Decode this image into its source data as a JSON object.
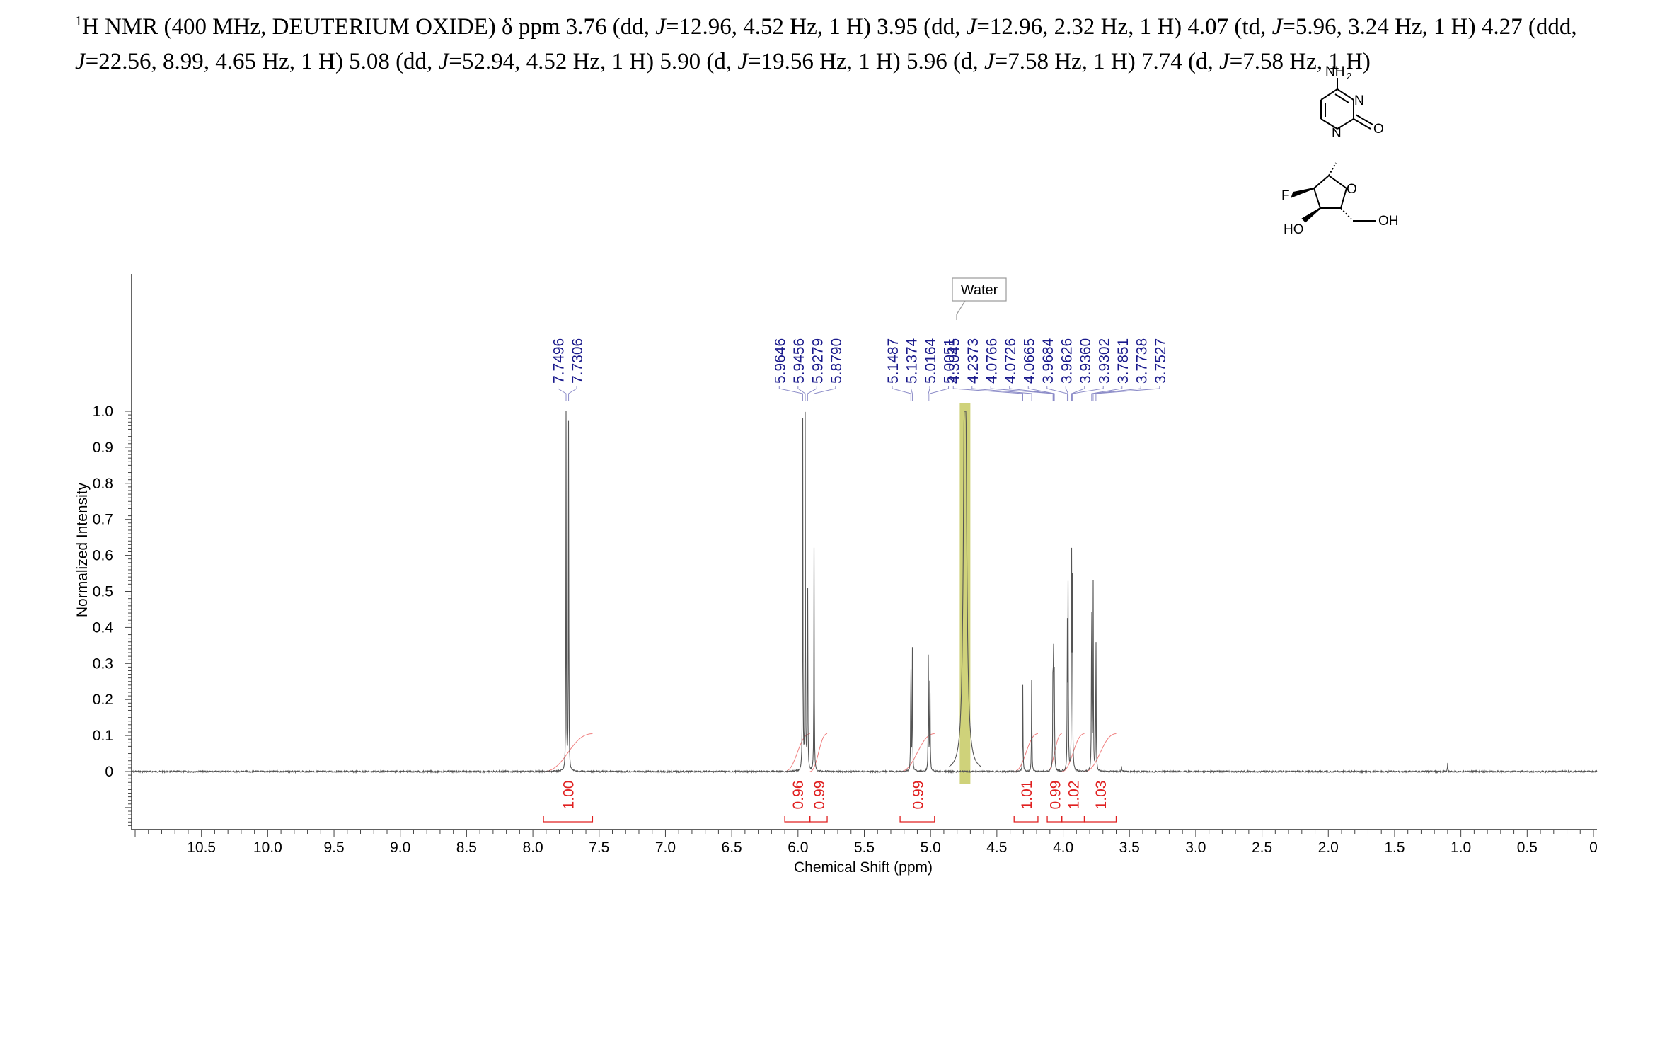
{
  "header": {
    "nucleus_sup": "1",
    "text_parts": [
      "H NMR (400 MHz, DEUTERIUM OXIDE) ",
      "δ",
      " ppm 3.76 (dd, ",
      "J",
      "=12.96, 4.52 Hz, 1 H) 3.95 (dd, ",
      "J",
      "=12.96, 2.32 Hz, 1 H) 4.07 (td, ",
      "J",
      "=5.96, 3.24 Hz, 1 H) 4.27 (ddd, ",
      "J",
      "=22.56, 8.99, 4.65 Hz, 1 H) 5.08 (dd, ",
      "J",
      "=52.94, 4.52 Hz, 1 H) 5.90 (d, ",
      "J",
      "=19.56 Hz, 1 H) 5.96 (d, ",
      "J",
      "=7.58 Hz, 1 H) 7.74 (d, ",
      "J",
      "=7.58 Hz, 1 H)"
    ]
  },
  "structure": {
    "labels": {
      "nh2": "NH",
      "nh2_sub": "2",
      "n3": "N",
      "o2": "O",
      "n1": "N",
      "o_ring": "O",
      "f": "F",
      "ho": "HO",
      "oh": "OH"
    }
  },
  "colors": {
    "spectrum": "#555555",
    "peak_labels": "#1a1a8c",
    "peak_leaders": "#8c8cc8",
    "integrals": "#e02020",
    "water_band": "#cfd27a",
    "axis": "#000000"
  },
  "chart_data": {
    "type": "line",
    "xlabel": "Chemical Shift (ppm)",
    "ylabel": "Normalized Intensity",
    "xlim": [
      11.0,
      0.0
    ],
    "ylim": [
      -0.15,
      1.0
    ],
    "x_ticks": [
      "10.5",
      "10.0",
      "9.5",
      "9.0",
      "8.5",
      "8.0",
      "7.5",
      "7.0",
      "6.5",
      "6.0",
      "5.5",
      "5.0",
      "4.5",
      "4.0",
      "3.5",
      "3.0",
      "2.5",
      "2.0",
      "1.5",
      "1.0",
      "0.5",
      "0"
    ],
    "x_tick_values": [
      10.5,
      10.0,
      9.5,
      9.0,
      8.5,
      8.0,
      7.5,
      7.0,
      6.5,
      6.0,
      5.5,
      5.0,
      4.5,
      4.0,
      3.5,
      3.0,
      2.5,
      2.0,
      1.5,
      1.0,
      0.5,
      0.0
    ],
    "y_ticks": [
      "1.0",
      "0.9",
      "0.8",
      "0.7",
      "0.6",
      "0.5",
      "0.4",
      "0.3",
      "0.2",
      "0.1",
      "0"
    ],
    "y_tick_values": [
      1.0,
      0.9,
      0.8,
      0.7,
      0.6,
      0.5,
      0.4,
      0.3,
      0.2,
      0.1,
      0.0
    ],
    "peaks": [
      {
        "ppm": 7.7496,
        "intensity": 1.0
      },
      {
        "ppm": 7.7306,
        "intensity": 1.0
      },
      {
        "ppm": 5.9646,
        "intensity": 0.99
      },
      {
        "ppm": 5.9456,
        "intensity": 0.99
      },
      {
        "ppm": 5.9279,
        "intensity": 0.63
      },
      {
        "ppm": 5.879,
        "intensity": 0.62
      },
      {
        "ppm": 5.1487,
        "intensity": 0.35
      },
      {
        "ppm": 5.1374,
        "intensity": 0.35
      },
      {
        "ppm": 5.0164,
        "intensity": 0.35
      },
      {
        "ppm": 5.0051,
        "intensity": 0.35
      },
      {
        "ppm": 4.3045,
        "intensity": 0.24
      },
      {
        "ppm": 4.2373,
        "intensity": 0.27
      },
      {
        "ppm": 4.0766,
        "intensity": 0.31
      },
      {
        "ppm": 4.0726,
        "intensity": 0.29
      },
      {
        "ppm": 4.0665,
        "intensity": 0.27
      },
      {
        "ppm": 3.9684,
        "intensity": 0.38
      },
      {
        "ppm": 3.9626,
        "intensity": 0.5
      },
      {
        "ppm": 3.936,
        "intensity": 0.58
      },
      {
        "ppm": 3.9302,
        "intensity": 0.55
      },
      {
        "ppm": 3.7851,
        "intensity": 0.56
      },
      {
        "ppm": 3.7738,
        "intensity": 0.54
      },
      {
        "ppm": 3.7527,
        "intensity": 0.4
      }
    ],
    "peak_labels": [
      "7.7496",
      "7.7306",
      "5.9646",
      "5.9456",
      "5.9279",
      "5.8790",
      "5.1487",
      "5.1374",
      "5.0164",
      "5.0051",
      "4.3045",
      "4.2373",
      "4.0766",
      "4.0726",
      "4.0665",
      "3.9684",
      "3.9626",
      "3.9360",
      "3.9302",
      "3.7851",
      "3.7738",
      "3.7527"
    ],
    "peak_label_groups": [
      {
        "labels": [
          0,
          1
        ]
      },
      {
        "labels": [
          2,
          3,
          4,
          5
        ]
      },
      {
        "labels": [
          6,
          7,
          8,
          9
        ]
      },
      {
        "labels": [
          10,
          11,
          12,
          13,
          14,
          15,
          16,
          17,
          18,
          19,
          20,
          21
        ]
      }
    ],
    "solvent": {
      "label": "Water",
      "ppm_from": 4.78,
      "ppm_to": 4.7
    },
    "small_peaks": [
      {
        "ppm": 3.56,
        "intensity": 0.015
      },
      {
        "ppm": 1.1,
        "intensity": 0.025
      }
    ],
    "integrals": [
      {
        "from": 7.92,
        "to": 7.55,
        "value": "1.00"
      },
      {
        "from": 6.1,
        "to": 5.91,
        "value": "0.96"
      },
      {
        "from": 5.91,
        "to": 5.78,
        "value": "0.99"
      },
      {
        "from": 5.23,
        "to": 4.97,
        "value": "0.99"
      },
      {
        "from": 4.37,
        "to": 4.19,
        "value": "1.01"
      },
      {
        "from": 4.12,
        "to": 4.01,
        "value": "0.99"
      },
      {
        "from": 4.01,
        "to": 3.84,
        "value": "1.02"
      },
      {
        "from": 3.84,
        "to": 3.6,
        "value": "1.03"
      }
    ]
  }
}
